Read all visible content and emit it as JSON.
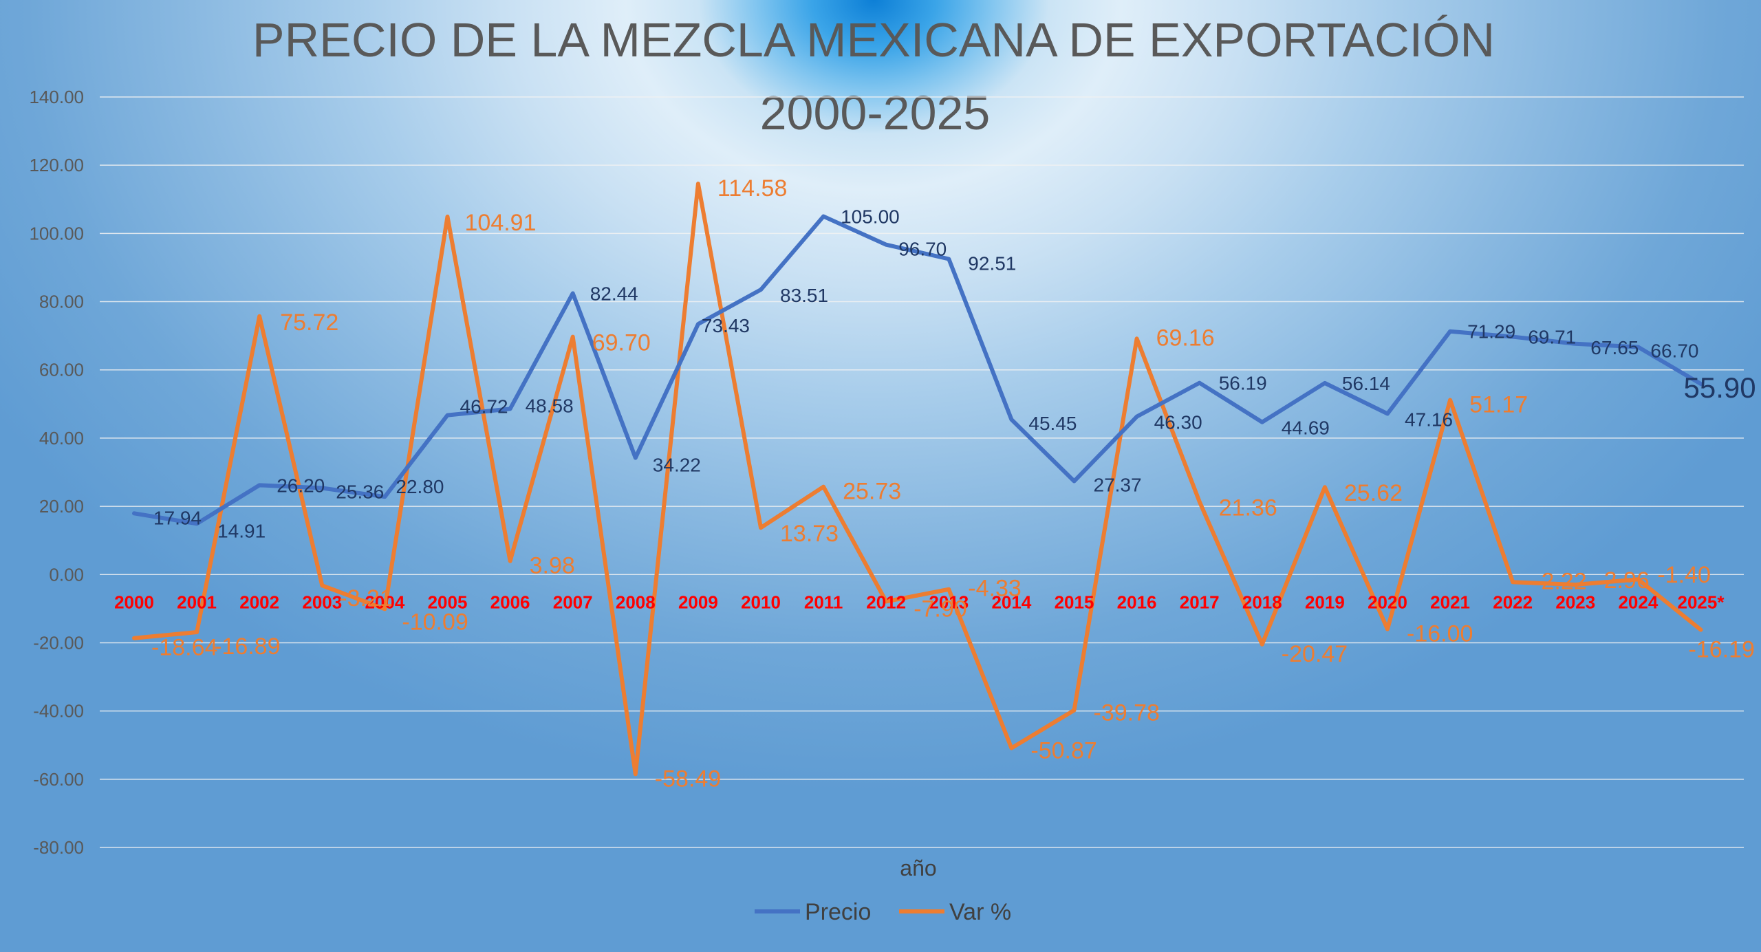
{
  "chart_data": {
    "type": "line",
    "title_line1": "PRECIO DE LA MEZCLA MEXICANA DE EXPORTACIÓN",
    "title_line2": "2000-2025",
    "xlabel": "año",
    "ylabel": "",
    "ylim": [
      -80,
      140
    ],
    "yticks": [
      "140.00",
      "120.00",
      "100.00",
      "80.00",
      "60.00",
      "40.00",
      "20.00",
      "0.00",
      "-20.00",
      "-40.00",
      "-60.00",
      "-80.00"
    ],
    "categories": [
      "2000",
      "2001",
      "2002",
      "2003",
      "2004",
      "2005",
      "2006",
      "2007",
      "2008",
      "2009",
      "2010",
      "2011",
      "2012",
      "2013",
      "2014",
      "2015",
      "2016",
      "2017",
      "2018",
      "2019",
      "2020",
      "2021",
      "2022",
      "2023",
      "2024",
      "2025*"
    ],
    "grid": true,
    "legend_position": "bottom",
    "series": [
      {
        "name": "Precio",
        "color": "#4472c4",
        "values": [
          17.94,
          14.91,
          26.2,
          25.36,
          22.8,
          46.72,
          48.58,
          82.44,
          34.22,
          73.43,
          83.51,
          105.0,
          96.7,
          92.51,
          45.45,
          27.37,
          46.3,
          56.19,
          44.69,
          56.14,
          47.16,
          71.29,
          69.71,
          67.65,
          66.7,
          55.9
        ],
        "labels": [
          "17.94",
          "14.91",
          "26.20",
          "25.36",
          "22.80",
          "46.72",
          "48.58",
          "82.44",
          "34.22",
          "73.43",
          "83.51",
          "105.00",
          "96.70",
          "92.51",
          "45.45",
          "27.37",
          "46.30",
          "56.19",
          "44.69",
          "56.14",
          "47.16",
          "71.29",
          "69.71",
          "67.65",
          "66.70",
          "55.90"
        ]
      },
      {
        "name": "Var %",
        "color": "#ed7d31",
        "values": [
          -18.64,
          -16.89,
          75.72,
          -3.21,
          -10.09,
          104.91,
          3.98,
          69.7,
          -58.49,
          114.58,
          13.73,
          25.73,
          -7.9,
          -4.33,
          -50.87,
          -39.78,
          69.16,
          21.36,
          -20.47,
          25.62,
          -16.0,
          51.17,
          -2.22,
          -2.96,
          -1.4,
          -16.19
        ],
        "labels": [
          "-18.64",
          "-16.89",
          "75.72",
          "-3.21",
          "-10.09",
          "104.91",
          "3.98",
          "69.70",
          "-58.49",
          "114.58",
          "13.73",
          "25.73",
          "-7.90",
          "-4.33",
          "-50.87",
          "-39.78",
          "69.16",
          "21.36",
          "-20.47",
          "25.62",
          "-16.00",
          "51.17",
          "-2.22",
          "-2.96",
          "-1.40",
          "-16.19"
        ]
      }
    ]
  }
}
